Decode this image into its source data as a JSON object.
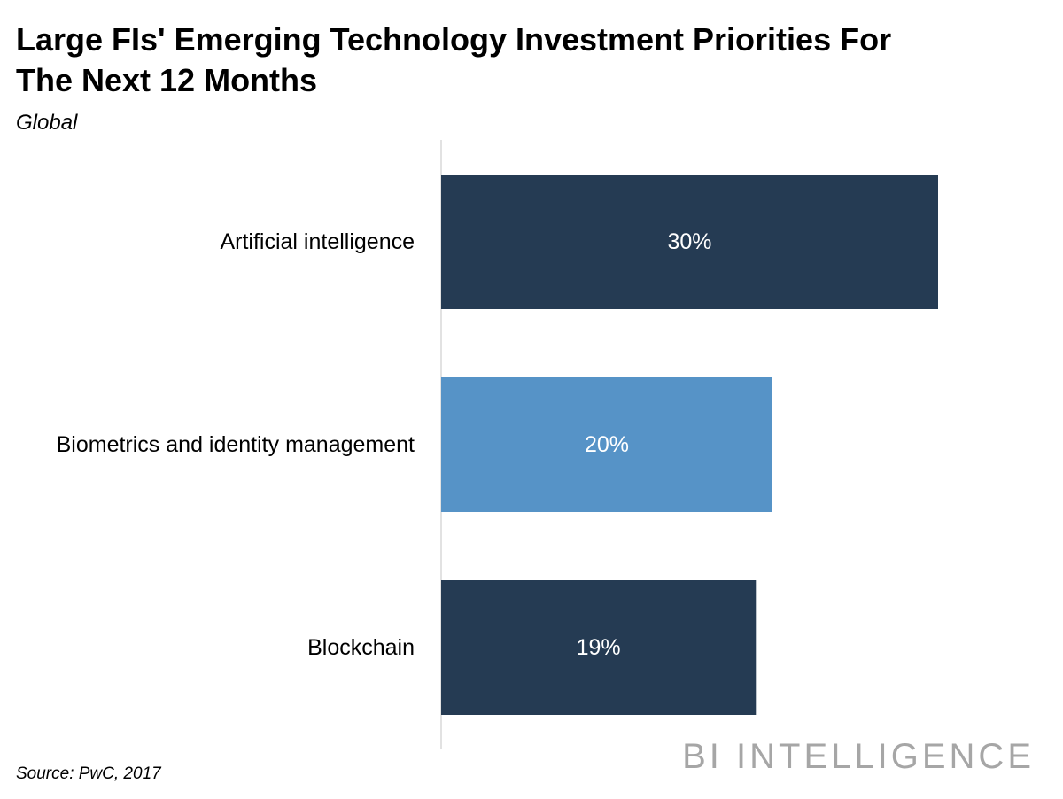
{
  "chart_data": {
    "type": "bar",
    "orientation": "horizontal",
    "title": "Large FIs' Emerging Technology Investment Priorities For The Next 12 Months",
    "subtitle": "Global",
    "categories": [
      "Artificial intelligence",
      "Biometrics and identity management",
      "Blockchain"
    ],
    "values": [
      30,
      20,
      19
    ],
    "value_labels": [
      "30%",
      "20%",
      "19%"
    ],
    "bar_colors": [
      "#253b53",
      "#5693c7",
      "#253b53"
    ],
    "axis_color": "#d9d9d9",
    "xlim": [
      0,
      30
    ],
    "xlabel": "",
    "ylabel": "",
    "grid": false,
    "legend": "none"
  },
  "source": "Source: PwC, 2017",
  "brand": "BI INTELLIGENCE"
}
